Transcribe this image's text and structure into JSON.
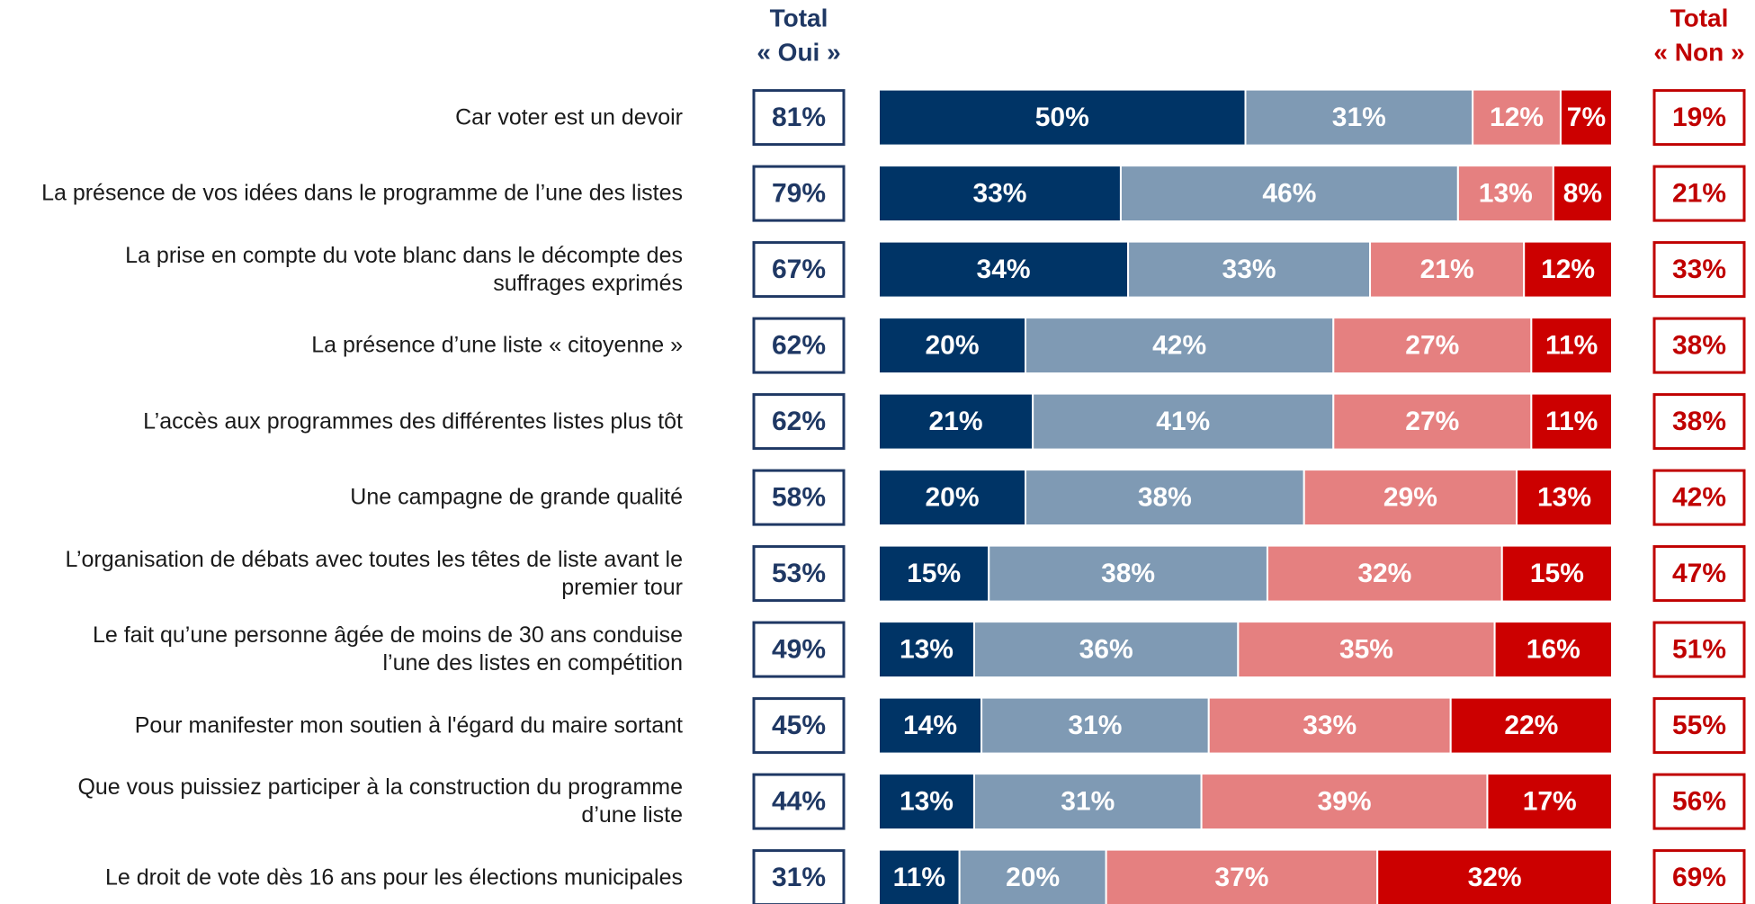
{
  "chart_data": {
    "type": "stacked_bar_horizontal",
    "categories": [
      "Car voter est un devoir",
      "La présence de vos idées dans le programme de l’une des listes",
      "La prise en compte du vote blanc dans le décompte des\nsuffrages exprimés",
      "La présence d’une liste « citoyenne »",
      "L’accès aux programmes des différentes listes plus tôt",
      "Une campagne de grande qualité",
      "L’organisation de débats avec toutes les têtes de liste avant le\npremier tour",
      "Le fait qu’une personne âgée de moins de 30 ans conduise\nl’une des listes en compétition",
      "Pour manifester mon soutien à l'égard du maire sortant",
      "Que vous puissiez participer à la construction du programme\nd’une liste",
      "Le droit de vote dès 16 ans pour les élections municipales"
    ],
    "xlim": [
      0,
      100
    ],
    "series": [
      {
        "color": "#003466",
        "values": [
          50,
          33,
          34,
          20,
          21,
          20,
          15,
          13,
          14,
          13,
          11
        ],
        "value_labels": [
          "50%",
          "33%",
          "34%",
          "20%",
          "21%",
          "20%",
          "15%",
          "13%",
          "14%",
          "13%",
          "11%"
        ]
      },
      {
        "color": "#7f9ab4",
        "values": [
          31,
          46,
          33,
          42,
          41,
          38,
          38,
          36,
          31,
          31,
          20
        ],
        "value_labels": [
          "31%",
          "46%",
          "33%",
          "42%",
          "41%",
          "38%",
          "38%",
          "36%",
          "31%",
          "31%",
          "20%"
        ]
      },
      {
        "color": "#e58080",
        "values": [
          12,
          13,
          21,
          27,
          27,
          29,
          32,
          35,
          33,
          39,
          37
        ],
        "value_labels": [
          "12%",
          "13%",
          "21%",
          "27%",
          "27%",
          "29%",
          "32%",
          "35%",
          "33%",
          "39%",
          "37%"
        ]
      },
      {
        "color": "#cc0000",
        "values": [
          7,
          8,
          12,
          11,
          11,
          13,
          15,
          16,
          22,
          17,
          32
        ],
        "value_labels": [
          "7%",
          "8%",
          "12%",
          "11%",
          "11%",
          "13%",
          "15%",
          "16%",
          "22%",
          "17%",
          "32%"
        ]
      }
    ],
    "yes_total": {
      "title": [
        "Total",
        "« Oui »"
      ],
      "color": "#1f3864",
      "values": [
        81,
        79,
        67,
        62,
        62,
        58,
        53,
        49,
        45,
        44,
        31
      ],
      "value_labels": [
        "81%",
        "79%",
        "67%",
        "62%",
        "62%",
        "58%",
        "53%",
        "49%",
        "45%",
        "44%",
        "31%"
      ]
    },
    "no_total": {
      "title": [
        "Total",
        "« Non »"
      ],
      "color": "#c00000",
      "values": [
        19,
        21,
        33,
        38,
        38,
        42,
        47,
        51,
        55,
        56,
        69
      ],
      "value_labels": [
        "19%",
        "21%",
        "33%",
        "38%",
        "38%",
        "42%",
        "47%",
        "51%",
        "55%",
        "56%",
        "69%"
      ]
    }
  }
}
